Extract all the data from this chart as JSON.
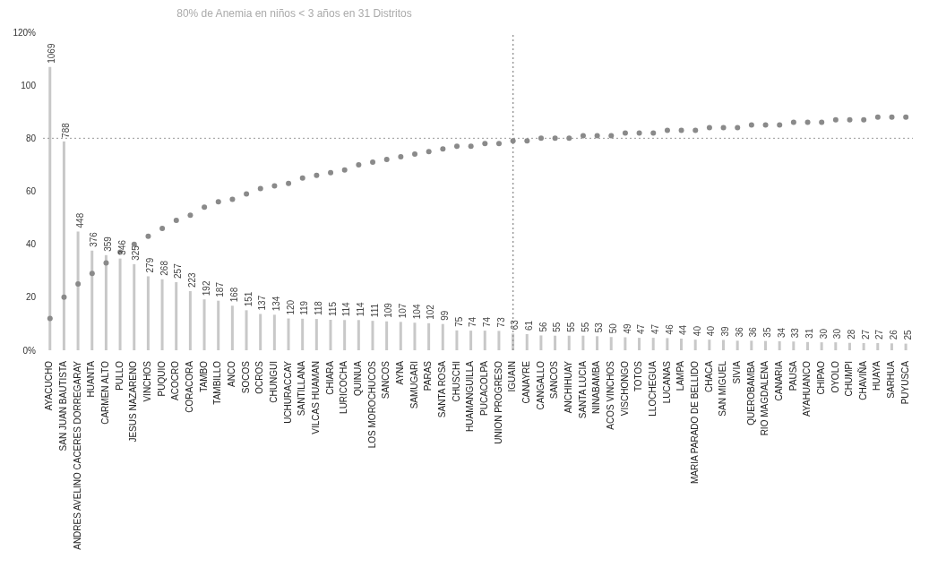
{
  "chart_data": {
    "type": "bar",
    "title": "80% de Anemia en niños < 3 años en 31 Distritos",
    "categories": [
      "AYACUCHO",
      "SAN JUAN BAUTISTA",
      "ANDRES AVELINO CACERES DORREGARAY",
      "HUANTA",
      "CARMEN ALTO",
      "PULLO",
      "JESUS NAZARENO",
      "VINCHOS",
      "PUQUIO",
      "ACOCRO",
      "CORACORA",
      "TAMBO",
      "TAMBILLO",
      "ANCO",
      "SOCOS",
      "OCROS",
      "CHUNGUI",
      "UCHURACCAY",
      "SANTILLANA",
      "VILCAS HUAMAN",
      "CHIARA",
      "LURICOCHA",
      "QUINUA",
      "LOS MOROCHUCOS",
      "SANCOS",
      "AYNA",
      "SAMUGARI",
      "PARAS",
      "SANTA ROSA",
      "CHUSCHI",
      "HUAMANGUILLA",
      "PUCACOLPA",
      "UNION PROGRESO",
      "IGUAIN",
      "CANAYRE",
      "CANGALLO",
      "SANCOS",
      "ANCHIHUAY",
      "SANTA LUCIA",
      "NINABAMBA",
      "ACOS VINCHOS",
      "VISCHONGO",
      "TOTOS",
      "LLOCHEGUA",
      "LUCANAS",
      "LAMPA",
      "MARIA PARADO DE BELLIDO",
      "CHACA",
      "SAN MIGUEL",
      "SIVIA",
      "QUEROBAMBA",
      "RIO MAGDALENA",
      "CANARIA",
      "PAUSA",
      "AYAHUANCO",
      "CHIPAO",
      "OYOLO",
      "CHUMPI",
      "CHAVIÑA",
      "HUAYA",
      "SARHUA",
      "PUYUSCA"
    ],
    "series": [
      {
        "axis": "y2",
        "color": "#c8c8c8",
        "values": [
          1069,
          788,
          448,
          376,
          359,
          346,
          325,
          279,
          268,
          257,
          223,
          192,
          187,
          168,
          151,
          137,
          134,
          120,
          119,
          118,
          115,
          114,
          114,
          111,
          109,
          107,
          104,
          102,
          99,
          75,
          74,
          74,
          73,
          63,
          61,
          56,
          55,
          55,
          55,
          53,
          50,
          49,
          47,
          47,
          46,
          44,
          40,
          40,
          39,
          36,
          36,
          35,
          34,
          33,
          31,
          30,
          30,
          28,
          27,
          27,
          26,
          25
        ],
        "value_labels": [
          "1069",
          "788",
          "448",
          "376",
          "359",
          "346",
          "325",
          "279",
          "268",
          "257",
          "223",
          "192",
          "187",
          "168",
          "151",
          "137",
          "134",
          "120",
          "119",
          "118",
          "115",
          "114",
          "114",
          "111",
          "109",
          "107",
          "104",
          "102",
          "99",
          "75",
          "74",
          "74",
          "73",
          "63",
          "61",
          "56",
          "55",
          "55",
          "55",
          "53",
          "50",
          "49",
          "47",
          "47",
          "46",
          "44",
          "40",
          "40",
          "39",
          "36",
          "36",
          "35",
          "34",
          "33",
          "31",
          "30",
          "30",
          "28",
          "27",
          "27",
          "26",
          "25"
        ]
      },
      {
        "type": "scatter",
        "color": "#8a8a8a",
        "values": [
          12,
          20,
          25,
          29,
          33,
          37,
          40,
          43,
          46,
          49,
          51,
          54,
          56,
          57,
          59,
          61,
          62,
          63,
          65,
          66,
          67,
          68,
          70,
          71,
          72,
          73,
          74,
          75,
          76,
          77,
          77,
          78,
          78,
          79,
          79,
          80,
          80,
          80,
          81,
          81,
          81,
          82,
          82,
          82,
          83,
          83,
          83,
          84,
          84,
          84,
          85,
          85,
          85,
          86,
          86,
          86,
          87,
          87,
          87,
          88,
          88,
          88
        ]
      }
    ],
    "ylim": [
      0,
      120
    ],
    "yticks": [
      {
        "value": 0,
        "label": "0%"
      },
      20,
      40,
      60,
      80,
      100,
      {
        "value": 120,
        "label": "120%"
      }
    ],
    "ref_lines": [
      {
        "axis": "y",
        "value": 80,
        "color": "#999999",
        "line_style": "dotted"
      },
      {
        "axis": "x",
        "value": "IGUAIN",
        "color": "#999999",
        "line_style": "dotted"
      }
    ],
    "marker": "circle"
  }
}
